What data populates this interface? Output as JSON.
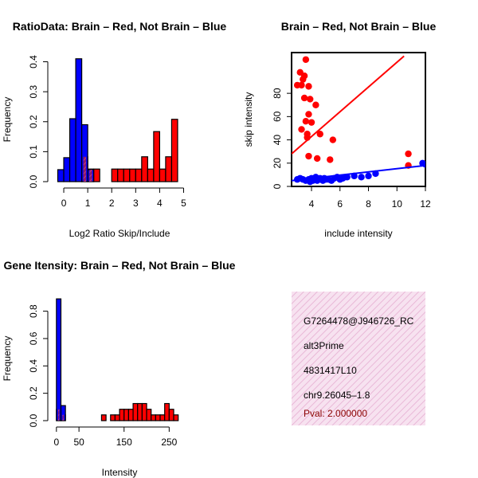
{
  "colors": {
    "red": "#ff0000",
    "blue": "#0000ff",
    "overlap": "#b03060",
    "info_bg": "#f4d6ea",
    "pval": "#8b0000"
  },
  "chart_data": [
    {
      "id": "ratio",
      "type": "bar",
      "title": "RatioData: Brain – Red, Not Brain – Blue",
      "xlabel": "Log2 Ratio Skip/Include",
      "ylabel": "Frequency",
      "xlim": [
        -0.4,
        5.15
      ],
      "ylim": [
        0,
        0.42
      ],
      "xticks": [
        0,
        1,
        2,
        3,
        4,
        5
      ],
      "yticks": [
        0.0,
        0.1,
        0.2,
        0.3,
        0.4
      ],
      "series": [
        {
          "name": "Brain",
          "color": "red",
          "bins": [
            [
              0.75,
              1.0,
              0.083
            ],
            [
              1.0,
              1.25,
              0.042
            ],
            [
              1.25,
              1.5,
              0.042
            ],
            [
              2.0,
              2.25,
              0.042
            ],
            [
              2.25,
              2.5,
              0.042
            ],
            [
              2.5,
              2.75,
              0.042
            ],
            [
              2.75,
              3.0,
              0.042
            ],
            [
              3.0,
              3.25,
              0.042
            ],
            [
              3.25,
              3.5,
              0.083
            ],
            [
              3.5,
              3.75,
              0.042
            ],
            [
              3.75,
              4.0,
              0.167
            ],
            [
              4.0,
              4.25,
              0.042
            ],
            [
              4.25,
              4.5,
              0.083
            ],
            [
              4.5,
              4.75,
              0.208
            ]
          ]
        },
        {
          "name": "Not Brain",
          "color": "blue",
          "bins": [
            [
              -0.25,
              0.0,
              0.04
            ],
            [
              0.0,
              0.25,
              0.08
            ],
            [
              0.25,
              0.5,
              0.21
            ],
            [
              0.5,
              0.75,
              0.41
            ],
            [
              0.75,
              1.0,
              0.19
            ],
            [
              1.0,
              1.25,
              0.04
            ]
          ]
        }
      ]
    },
    {
      "id": "scatter",
      "type": "scatter",
      "title": "Brain – Red, Not Brain – Blue",
      "xlabel": "include intensity",
      "ylabel": "skip intensity",
      "xlim": [
        2.6,
        12.0
      ],
      "ylim": [
        0,
        115
      ],
      "xticks": [
        4,
        6,
        8,
        10,
        12
      ],
      "yticks": [
        0,
        20,
        40,
        60,
        80
      ],
      "series": [
        {
          "name": "Brain",
          "color": "red",
          "points": [
            [
              3.6,
              109
            ],
            [
              3.2,
              98
            ],
            [
              3.4,
              92
            ],
            [
              3.5,
              95
            ],
            [
              3.3,
              87
            ],
            [
              3.0,
              87
            ],
            [
              3.8,
              86
            ],
            [
              3.5,
              76
            ],
            [
              3.9,
              75
            ],
            [
              4.3,
              70
            ],
            [
              3.8,
              62
            ],
            [
              3.6,
              56
            ],
            [
              4.0,
              55
            ],
            [
              3.3,
              49
            ],
            [
              3.7,
              45
            ],
            [
              3.7,
              42
            ],
            [
              4.6,
              45
            ],
            [
              5.5,
              40
            ],
            [
              3.8,
              26
            ],
            [
              4.4,
              24
            ],
            [
              10.8,
              28
            ],
            [
              10.8,
              18
            ],
            [
              5.3,
              23
            ]
          ],
          "fit": [
            [
              2.6,
              28
            ],
            [
              10.5,
              112
            ]
          ]
        },
        {
          "name": "Not Brain",
          "color": "blue",
          "points": [
            [
              3.0,
              6
            ],
            [
              3.2,
              7
            ],
            [
              3.4,
              6
            ],
            [
              3.6,
              5
            ],
            [
              3.8,
              6
            ],
            [
              3.9,
              4
            ],
            [
              4.0,
              7
            ],
            [
              4.1,
              5
            ],
            [
              4.2,
              6
            ],
            [
              4.3,
              8
            ],
            [
              4.4,
              5
            ],
            [
              4.5,
              6
            ],
            [
              4.6,
              7
            ],
            [
              4.7,
              6
            ],
            [
              4.8,
              5
            ],
            [
              4.9,
              7
            ],
            [
              5.0,
              6
            ],
            [
              5.2,
              6
            ],
            [
              5.4,
              5
            ],
            [
              5.6,
              7
            ],
            [
              5.8,
              8
            ],
            [
              6.0,
              6
            ],
            [
              6.2,
              7
            ],
            [
              6.5,
              8
            ],
            [
              7.0,
              9
            ],
            [
              7.5,
              8
            ],
            [
              8.0,
              9
            ],
            [
              8.5,
              11
            ],
            [
              11.8,
              20
            ],
            [
              12.0,
              19
            ]
          ],
          "fit": [
            [
              2.6,
              5
            ],
            [
              12.0,
              18
            ]
          ]
        }
      ]
    },
    {
      "id": "intensity",
      "type": "bar",
      "title": "Gene Itensity: Brain – Red, Not Brain – Blue",
      "xlabel": "Intensity",
      "ylabel": "Frequency",
      "xlim": [
        -5,
        290
      ],
      "ylim": [
        0,
        0.92
      ],
      "xticks": [
        0,
        50,
        150,
        250
      ],
      "yticks": [
        0.0,
        0.2,
        0.4,
        0.6,
        0.8
      ],
      "series": [
        {
          "name": "Brain",
          "color": "red",
          "bins": [
            [
              0,
              10,
              0.083
            ],
            [
              10,
              20,
              0.042
            ],
            [
              100,
              110,
              0.042
            ],
            [
              120,
              130,
              0.042
            ],
            [
              130,
              140,
              0.042
            ],
            [
              140,
              150,
              0.083
            ],
            [
              150,
              160,
              0.083
            ],
            [
              160,
              170,
              0.083
            ],
            [
              170,
              180,
              0.125
            ],
            [
              180,
              190,
              0.125
            ],
            [
              190,
              200,
              0.125
            ],
            [
              200,
              210,
              0.083
            ],
            [
              210,
              220,
              0.042
            ],
            [
              220,
              230,
              0.042
            ],
            [
              230,
              240,
              0.042
            ],
            [
              240,
              250,
              0.125
            ],
            [
              250,
              260,
              0.083
            ],
            [
              260,
              270,
              0.042
            ]
          ]
        },
        {
          "name": "Not Brain",
          "color": "blue",
          "bins": [
            [
              0,
              10,
              0.89
            ],
            [
              10,
              20,
              0.11
            ]
          ]
        }
      ]
    }
  ],
  "info_box": {
    "event_id": "G7264478@J946726_RC",
    "event_type": "alt3Prime",
    "clone": "4831417L10",
    "location": "chr9.26045–1.8",
    "pval": "Pval: 2.000000"
  }
}
